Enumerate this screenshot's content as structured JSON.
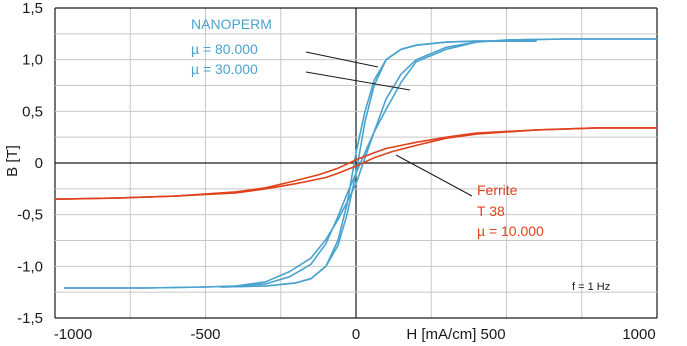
{
  "chart_data": {
    "type": "line",
    "xlabel": "H [mA/cm]",
    "ylabel": "B [T]",
    "xlim": [
      -1000,
      1000
    ],
    "ylim": [
      -1.5,
      1.5
    ],
    "x_ticks": [
      -1000,
      -500,
      0,
      500,
      1000
    ],
    "x_tick_labels": [
      "-1000",
      "-500",
      "0",
      "",
      "1000"
    ],
    "x_axis_label_with_tick": "H [mA/cm] 500",
    "y_ticks": [
      1.5,
      1.0,
      0.5,
      0,
      -0.5,
      -1.0,
      -1.5
    ],
    "y_tick_labels": [
      "1,5",
      "1,0",
      "0,5",
      "0",
      "-0,5",
      "-1,0",
      "-1,5"
    ],
    "grid": true,
    "colors": {
      "nanoperm": "#4aa3cf",
      "ferrite": "#e0401c",
      "grid": "#c8c8c8"
    },
    "annotations": {
      "nanoperm_title": "NANOPERM",
      "nanoperm_mu1": "µ = 80.000",
      "nanoperm_mu2": "µ = 30.000",
      "ferrite_title": "Ferrite",
      "ferrite_type": "T 38",
      "ferrite_mu": "µ = 10.000",
      "frequency": "f = 1 Hz"
    },
    "series": [
      {
        "color": "#4aa3cf",
        "x": [
          -970,
          -700,
          -500,
          -400,
          -300,
          -220,
          -150,
          -100,
          -60,
          -30,
          0,
          30,
          60,
          100,
          150,
          200,
          300,
          400,
          500,
          700,
          1000
        ],
        "y": [
          -1.21,
          -1.21,
          -1.2,
          -1.19,
          -1.17,
          -1.1,
          -0.98,
          -0.78,
          -0.52,
          -0.3,
          -0.1,
          0.1,
          0.3,
          0.52,
          0.78,
          0.98,
          1.1,
          1.17,
          1.19,
          1.2,
          1.2
        ]
      },
      {
        "color": "#4aa3cf",
        "x": [
          -970,
          -700,
          -500,
          -400,
          -300,
          -220,
          -150,
          -100,
          -60,
          -30,
          0,
          30,
          60,
          100,
          150,
          200,
          300,
          400,
          500,
          700,
          1000
        ],
        "y": [
          -1.21,
          -1.21,
          -1.2,
          -1.19,
          -1.15,
          -1.05,
          -0.92,
          -0.74,
          -0.55,
          -0.38,
          -0.2,
          0.05,
          0.3,
          0.62,
          0.86,
          1.0,
          1.12,
          1.17,
          1.19,
          1.2,
          1.2
        ]
      },
      {
        "color": "#4aa3cf",
        "x": [
          -450,
          -300,
          -200,
          -150,
          -100,
          -60,
          -30,
          0,
          30,
          60,
          100,
          150,
          200,
          300,
          400,
          600
        ],
        "y": [
          -1.2,
          -1.19,
          -1.16,
          -1.12,
          -1.0,
          -0.75,
          -0.4,
          0.1,
          0.5,
          0.8,
          1.0,
          1.1,
          1.14,
          1.17,
          1.18,
          1.18
        ]
      },
      {
        "color": "#4aa3cf",
        "x": [
          -450,
          -300,
          -200,
          -150,
          -100,
          -60,
          -30,
          0,
          30,
          60,
          100,
          150,
          200,
          300,
          400,
          600
        ],
        "y": [
          -1.2,
          -1.19,
          -1.16,
          -1.12,
          -1.0,
          -0.8,
          -0.5,
          -0.1,
          0.4,
          0.75,
          1.0,
          1.1,
          1.14,
          1.17,
          1.18,
          1.18
        ]
      },
      {
        "color": "#e0401c",
        "x": [
          -1000,
          -800,
          -600,
          -400,
          -300,
          -200,
          -120,
          -60,
          0,
          60,
          100,
          150,
          200,
          300,
          400,
          600,
          800,
          1000
        ],
        "y": [
          -0.35,
          -0.34,
          -0.32,
          -0.28,
          -0.24,
          -0.17,
          -0.11,
          -0.05,
          0.03,
          0.1,
          0.14,
          0.17,
          0.2,
          0.25,
          0.29,
          0.32,
          0.34,
          0.34
        ]
      },
      {
        "color": "#e0401c",
        "x": [
          -1000,
          -800,
          -600,
          -400,
          -300,
          -200,
          -150,
          -100,
          -60,
          0,
          60,
          120,
          200,
          300,
          400,
          600,
          800,
          1000
        ],
        "y": [
          -0.35,
          -0.34,
          -0.32,
          -0.29,
          -0.25,
          -0.2,
          -0.17,
          -0.14,
          -0.1,
          -0.03,
          0.05,
          0.11,
          0.17,
          0.24,
          0.28,
          0.32,
          0.34,
          0.34
        ]
      }
    ]
  }
}
